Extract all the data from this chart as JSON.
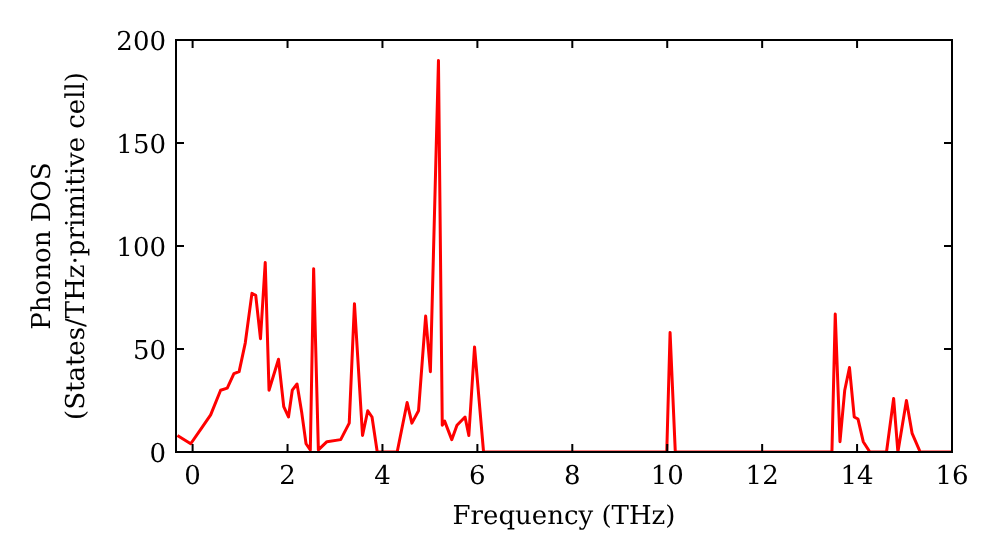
{
  "chart_data": {
    "type": "line",
    "xlabel": "Frequency (THz)",
    "ylabel": "Phonon DOS\n(States/THz·primitive cell)",
    "xlim": [
      -0.35,
      16
    ],
    "ylim": [
      0,
      200
    ],
    "xticks": [
      0,
      2,
      4,
      6,
      8,
      10,
      12,
      14,
      16
    ],
    "yticks": [
      0,
      50,
      100,
      150,
      200
    ],
    "marker": "none",
    "line_style": "solid",
    "series": [
      {
        "color": "#ff0000",
        "x": [
          -0.32,
          -0.04,
          0.17,
          0.38,
          0.59,
          0.73,
          0.87,
          0.98,
          1.11,
          1.25,
          1.33,
          1.43,
          1.53,
          1.61,
          1.81,
          1.92,
          2.02,
          2.1,
          2.2,
          2.3,
          2.39,
          2.48,
          2.55,
          2.65,
          2.83,
          3.12,
          3.3,
          3.41,
          3.58,
          3.69,
          3.78,
          3.89,
          4.31,
          4.52,
          4.62,
          4.76,
          4.91,
          5.01,
          5.18,
          5.26,
          5.31,
          5.46,
          5.57,
          5.74,
          5.82,
          5.94,
          6.13,
          9.99,
          10.06,
          10.17,
          13.47,
          13.54,
          13.64,
          13.74,
          13.84,
          13.94,
          14.02,
          14.13,
          14.27,
          14.62,
          14.77,
          14.86,
          15.04,
          15.16,
          15.33,
          16
        ],
        "values": [
          8,
          4,
          11,
          18,
          30,
          31,
          38,
          39,
          53,
          77,
          76,
          55,
          92,
          30,
          45,
          22,
          17,
          30,
          33,
          19,
          4,
          1,
          89,
          1,
          5,
          6,
          14,
          72,
          8,
          20,
          17,
          0,
          0,
          24,
          14,
          20,
          66,
          39,
          190,
          13,
          15,
          6,
          13,
          17,
          8,
          51,
          0,
          0,
          58,
          0,
          0,
          67,
          5,
          30,
          41,
          17,
          16,
          5,
          0,
          0,
          26,
          0,
          25,
          9,
          0,
          0
        ]
      }
    ]
  }
}
